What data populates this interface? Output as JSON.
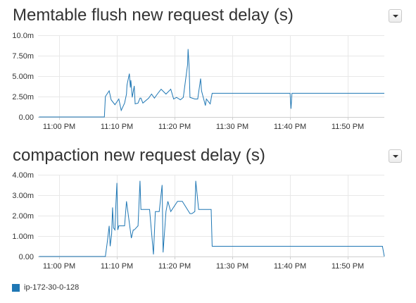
{
  "colors": {
    "series": "#1f77b4"
  },
  "legend": {
    "label": "ip-172-30-0-128",
    "color": "#1f77b4"
  },
  "panels": [
    {
      "title": "Memtable flush new request delay (s)",
      "dropdown_icon": "caret-down-icon"
    },
    {
      "title": "compaction new request delay (s)",
      "dropdown_icon": "caret-down-icon"
    }
  ],
  "chart_data": [
    {
      "type": "line",
      "title": "Memtable flush new request delay (s)",
      "xlabel": "",
      "ylabel": "",
      "x_ticks": [
        "11:00 PM",
        "11:10 PM",
        "11:20 PM",
        "11:30 PM",
        "11:40 PM",
        "11:50 PM"
      ],
      "y_ticks": [
        "0.00",
        "2.50m",
        "5.00m",
        "7.50m",
        "10.0m"
      ],
      "ylim": [
        0,
        0.01
      ],
      "grid": true,
      "series": [
        {
          "name": "ip-172-30-0-128",
          "x": [
            "10:56:30 PM",
            "11:07:50 PM",
            "11:08:00 PM",
            "11:08:40 PM",
            "11:09:00 PM",
            "11:09:40 PM",
            "11:10:20 PM",
            "11:10:45 PM",
            "11:11:20 PM",
            "11:11:40 PM",
            "11:11:45 PM",
            "11:12:10 PM",
            "11:12:20 PM",
            "11:12:25 PM",
            "11:12:40 PM",
            "11:13:00 PM",
            "11:13:10 PM",
            "11:13:40 PM",
            "11:14:00 PM",
            "11:14:10 PM",
            "11:14:30 PM",
            "11:15:30 PM",
            "11:16:00 PM",
            "11:16:30 PM",
            "11:17:00 PM",
            "11:17:40 PM",
            "11:18:30 PM",
            "11:19:20 PM",
            "11:19:50 PM",
            "11:20:20 PM",
            "11:21:00 PM",
            "11:21:30 PM",
            "11:22:15 PM",
            "11:22:20 PM",
            "11:22:30 PM",
            "11:22:40 PM",
            "11:23:30 PM",
            "11:24:00 PM",
            "11:24:30 PM",
            "11:24:40 PM",
            "11:25:20 PM",
            "11:25:30 PM",
            "11:26:10 PM",
            "11:26:30 PM",
            "11:40:00 PM",
            "11:40:10 PM",
            "11:40:20 PM",
            "11:56:20 PM"
          ],
          "values": [
            0,
            0,
            0.0025,
            0.0032,
            0.0021,
            0.0015,
            0.0022,
            0.0008,
            0.0017,
            0.0028,
            0.0039,
            0.0053,
            0.0036,
            0.0045,
            0.0024,
            0.0038,
            0.0016,
            0.0017,
            0.0023,
            0.0023,
            0.0017,
            0.0023,
            0.0028,
            0.0023,
            0.0028,
            0.0034,
            0.0028,
            0.0034,
            0.0022,
            0.0024,
            0.0021,
            0.0024,
            0.0064,
            0.0083,
            0.0063,
            0.0024,
            0.0022,
            0.0022,
            0.0047,
            0.0032,
            0.0014,
            0.0022,
            0.0016,
            0.0029,
            0.0029,
            0.001,
            0.0029,
            0.0029
          ]
        }
      ]
    },
    {
      "type": "line",
      "title": "compaction new request delay (s)",
      "xlabel": "",
      "ylabel": "",
      "x_ticks": [
        "11:00 PM",
        "11:10 PM",
        "11:20 PM",
        "11:30 PM",
        "11:40 PM",
        "11:50 PM"
      ],
      "y_ticks": [
        "0.00",
        "1.00m",
        "2.00m",
        "3.00m",
        "4.00m"
      ],
      "ylim": [
        0,
        0.004
      ],
      "grid": true,
      "series": [
        {
          "name": "ip-172-30-0-128",
          "x": [
            "10:56:30 PM",
            "11:08:00 PM",
            "11:08:20 PM",
            "11:08:40 PM",
            "11:08:50 PM",
            "11:09:05 PM",
            "11:09:15 PM",
            "11:09:25 PM",
            "11:09:40 PM",
            "11:09:50 PM",
            "11:10:00 PM",
            "11:10:10 PM",
            "11:10:20 PM",
            "11:11:20 PM",
            "11:11:40 PM",
            "11:12:30 PM",
            "11:12:50 PM",
            "11:13:00 PM",
            "11:13:40 PM",
            "11:14:00 PM",
            "11:14:10 PM",
            "11:14:20 PM",
            "11:15:40 PM",
            "11:16:20 PM",
            "11:16:40 PM",
            "11:17:20 PM",
            "11:17:50 PM",
            "11:18:00 PM",
            "11:18:30 PM",
            "11:18:50 PM",
            "11:19:20 PM",
            "11:20:30 PM",
            "11:21:20 PM",
            "11:22:40 PM",
            "11:23:00 PM",
            "11:23:30 PM",
            "11:23:40 PM",
            "11:24:10 PM",
            "11:24:20 PM",
            "11:24:30 PM",
            "11:26:20 PM",
            "11:26:30 PM",
            "11:56:00 PM",
            "11:56:20 PM"
          ],
          "values": [
            0,
            0,
            0.0007,
            0.0015,
            0.0005,
            0.0011,
            0.0024,
            0.0014,
            0.0013,
            0.0026,
            0.0036,
            0.0013,
            0.0015,
            0.0015,
            0.0027,
            0.0009,
            0.0013,
            0.0013,
            0.0015,
            0.0037,
            0.0023,
            0.0023,
            0.0023,
            0.0001,
            0.0022,
            0.0022,
            0.0035,
            0.0002,
            0.0022,
            0.0027,
            0.0022,
            0.0027,
            0.0027,
            0.0021,
            0.0021,
            0.0022,
            0.0037,
            0.0023,
            0.0023,
            0.0023,
            0.0023,
            0.0005,
            0.0005,
            0
          ]
        }
      ]
    }
  ]
}
